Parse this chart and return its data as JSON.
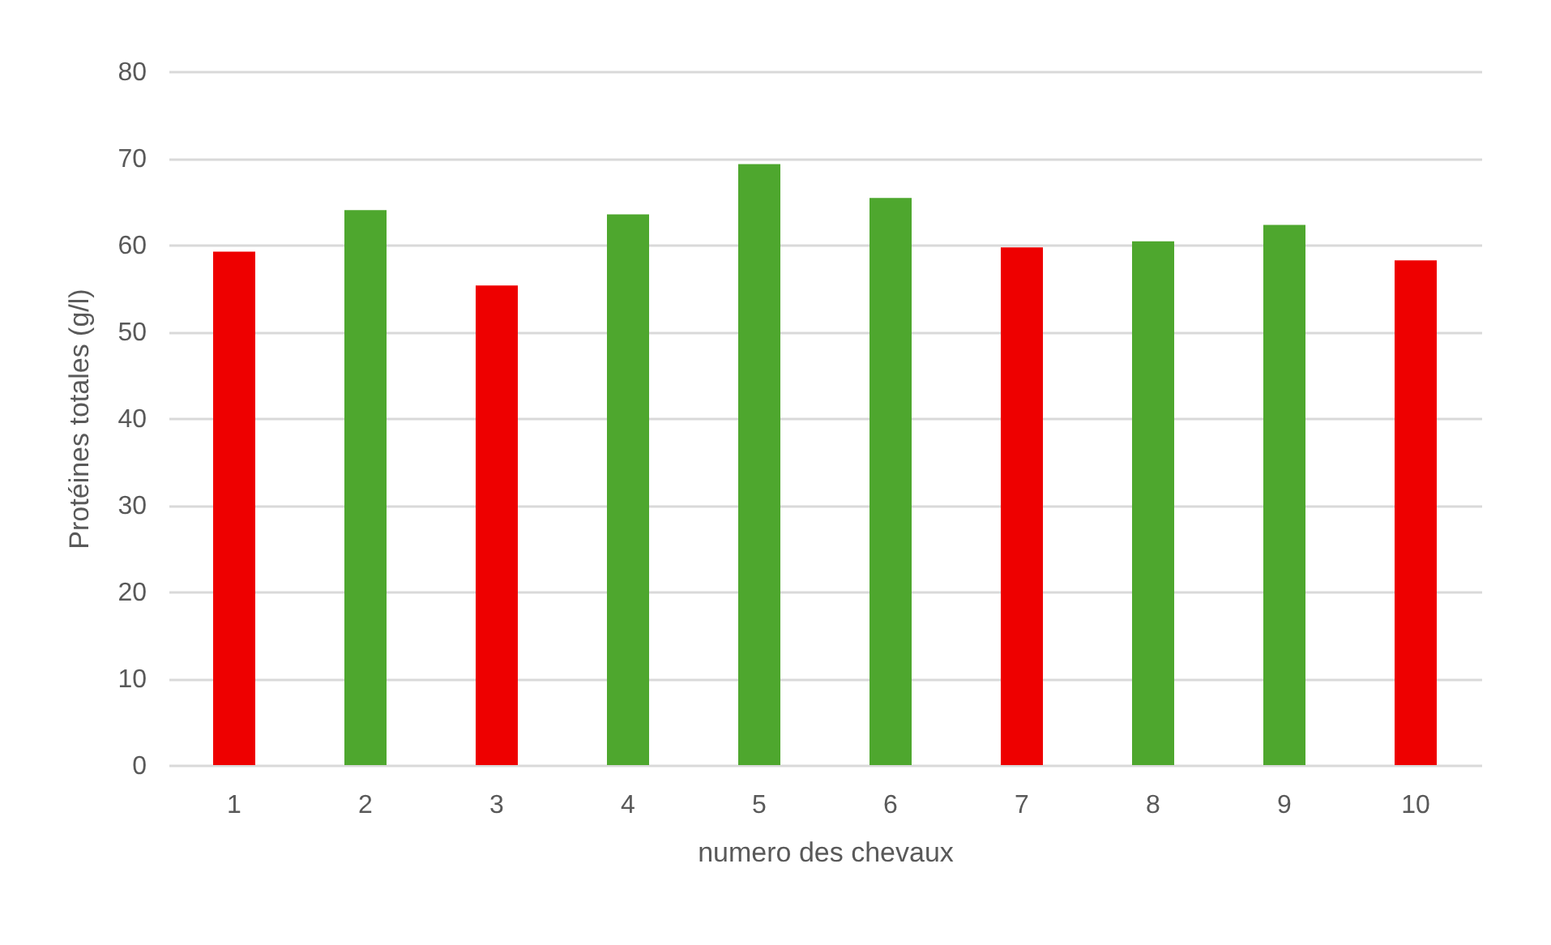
{
  "chart_data": {
    "type": "bar",
    "xlabel": "numero des chevaux",
    "ylabel": "Protéines totales (g/l)",
    "categories": [
      "1",
      "2",
      "3",
      "4",
      "5",
      "6",
      "7",
      "8",
      "9",
      "10"
    ],
    "values": [
      59.2,
      64.0,
      55.3,
      63.5,
      69.3,
      65.4,
      59.7,
      60.4,
      62.3,
      58.2
    ],
    "colors": [
      "#ee0000",
      "#4ea72e",
      "#ee0000",
      "#4ea72e",
      "#4ea72e",
      "#4ea72e",
      "#ee0000",
      "#4ea72e",
      "#4ea72e",
      "#ee0000"
    ],
    "ylim": [
      0,
      80
    ],
    "yticks": [
      0,
      10,
      20,
      30,
      40,
      50,
      60,
      70,
      80
    ],
    "grid": "y"
  }
}
